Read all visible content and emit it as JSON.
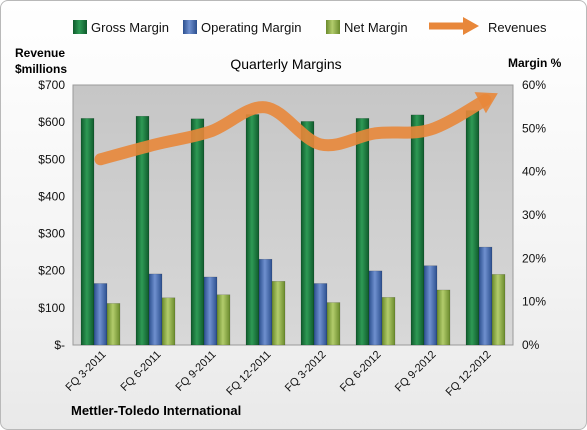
{
  "chart_data": {
    "type": "bar",
    "title": "Quarterly Margins",
    "categories": [
      "FQ 3-2011",
      "FQ 6-2011",
      "FQ 9-2011",
      "FQ 12-2011",
      "FQ 3-2012",
      "FQ 6-2012",
      "FQ 9-2012",
      "FQ 12-2012"
    ],
    "series": [
      {
        "name": "Gross Margin",
        "axis": "right",
        "values": [
          52.3,
          52.8,
          52.2,
          53.2,
          51.6,
          52.3,
          53.1,
          54.1
        ],
        "color": "#1e7a40"
      },
      {
        "name": "Operating Margin",
        "axis": "right",
        "values": [
          14.2,
          16.4,
          15.7,
          19.8,
          14.2,
          17.1,
          18.3,
          22.6
        ],
        "color": "#4a6fb5"
      },
      {
        "name": "Net Margin",
        "axis": "right",
        "values": [
          9.6,
          10.9,
          11.6,
          14.7,
          9.8,
          11.0,
          12.7,
          16.3
        ],
        "color": "#8fae43"
      }
    ],
    "line_series": {
      "name": "Revenues",
      "axis": "left",
      "values": [
        500,
        540,
        575,
        640,
        540,
        570,
        580,
        660
      ],
      "color": "#e8873a"
    },
    "left_axis": {
      "title_line1": "Revenue",
      "title_line2": "$millions",
      "ylim": [
        0,
        700
      ],
      "ticks": [
        "$-",
        "$100",
        "$200",
        "$300",
        "$400",
        "$500",
        "$600",
        "$700"
      ]
    },
    "right_axis": {
      "title": "Margin %",
      "ylim": [
        0,
        60
      ],
      "ticks": [
        "0%",
        "10%",
        "20%",
        "30%",
        "40%",
        "50%",
        "60%"
      ]
    },
    "legend_position": "top",
    "grid": false,
    "footer": "Mettler-Toledo International"
  }
}
